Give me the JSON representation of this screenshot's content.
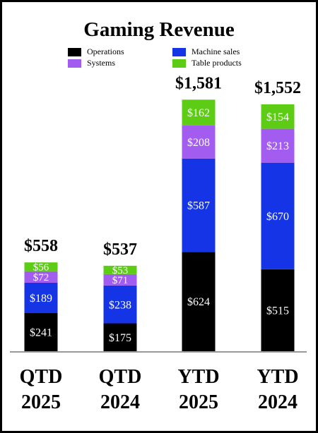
{
  "chart_data": {
    "type": "bar",
    "stacked": true,
    "title": "Gaming Revenue",
    "categories": [
      "QTD\n2025",
      "QTD\n2024",
      "YTD\n2025",
      "YTD\n2024"
    ],
    "series": [
      {
        "name": "Operations",
        "color": "#000000",
        "values": [
          241,
          175,
          624,
          515
        ]
      },
      {
        "name": "Machine sales",
        "color": "#1434e6",
        "values": [
          189,
          238,
          587,
          670
        ]
      },
      {
        "name": "Systems",
        "color": "#a35cf0",
        "values": [
          72,
          71,
          208,
          213
        ]
      },
      {
        "name": "Table products",
        "color": "#5ccc14",
        "values": [
          56,
          53,
          162,
          154
        ]
      }
    ],
    "totals": [
      "$558",
      "$537",
      "$1,581",
      "$1,552"
    ],
    "segment_labels": [
      [
        "$241",
        "$189",
        "$72",
        "$56"
      ],
      [
        "$175",
        "$238",
        "$71",
        "$53"
      ],
      [
        "$624",
        "$587",
        "$208",
        "$162"
      ],
      [
        "$515",
        "$670",
        "$213",
        "$154"
      ]
    ],
    "legend_placement": "top"
  },
  "legend": [
    {
      "label": "Operations",
      "color": "#000000"
    },
    {
      "label": "Machine sales",
      "color": "#1434e6"
    },
    {
      "label": "Systems",
      "color": "#a35cf0"
    },
    {
      "label": "Table products",
      "color": "#5ccc14"
    }
  ]
}
